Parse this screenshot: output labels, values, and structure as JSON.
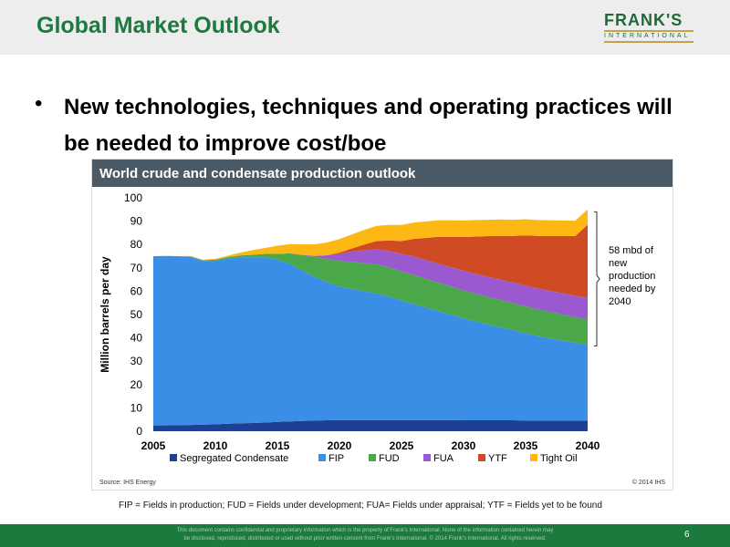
{
  "slide": {
    "title": "Global Market Outlook",
    "logo_word": "FRANK'S",
    "logo_sub": "INTERNATIONAL",
    "bullet": "New technologies, techniques and operating practices will be needed to improve cost/boe",
    "chart_header": "World crude and condensate production outlook",
    "footnote": "FIP = Fields in production; FUD = Fields under development; FUA= Fields under appraisal; YTF = Fields yet to be found",
    "footer_line1": "This document contains confidential and proprietary information which is the property of Frank's International. None of the information contained herein may",
    "footer_line2": "be disclosed, reproduced, distributed or used without prior written consent from Frank's International. © 2014 Frank's International. All rights reserved.",
    "page_number": "6"
  },
  "chart_data": {
    "type": "area",
    "stacked": true,
    "title": "World crude and condensate production outlook",
    "ylabel": "Million barrels per day",
    "xlabel": "",
    "ylim": [
      0,
      100
    ],
    "yticks": [
      0,
      10,
      20,
      30,
      40,
      50,
      60,
      70,
      80,
      90,
      100
    ],
    "xlim": [
      2005,
      2040
    ],
    "xticks": [
      2005,
      2010,
      2015,
      2020,
      2025,
      2030,
      2035,
      2040
    ],
    "x": [
      2005,
      2006,
      2007,
      2008,
      2009,
      2010,
      2011,
      2012,
      2013,
      2014,
      2015,
      2016,
      2017,
      2018,
      2019,
      2020,
      2021,
      2022,
      2023,
      2024,
      2025,
      2026,
      2027,
      2028,
      2029,
      2030,
      2031,
      2032,
      2033,
      2034,
      2035,
      2036,
      2037,
      2038,
      2039,
      2040
    ],
    "series": [
      {
        "name": "Segregated Condensate",
        "color": "#1f3f94",
        "values": [
          2.5,
          2.5,
          2.6,
          2.7,
          2.8,
          3.0,
          3.2,
          3.4,
          3.5,
          3.7,
          4.0,
          4.2,
          4.4,
          4.6,
          4.7,
          4.8,
          4.8,
          4.8,
          4.8,
          4.8,
          4.8,
          4.8,
          4.8,
          4.8,
          4.8,
          4.7,
          4.7,
          4.7,
          4.7,
          4.7,
          4.6,
          4.6,
          4.6,
          4.6,
          4.6,
          4.6
        ]
      },
      {
        "name": "FIP",
        "color": "#3a8ee6",
        "values": [
          72.5,
          72.6,
          72.4,
          72.0,
          70.2,
          70.0,
          70.8,
          71.1,
          71.0,
          70.8,
          69.5,
          67.5,
          64.5,
          61.5,
          59.2,
          57.2,
          56.2,
          55.2,
          54.2,
          52.9,
          51.2,
          49.7,
          48.2,
          46.6,
          45.1,
          43.6,
          42.3,
          41.0,
          39.8,
          38.6,
          37.4,
          36.2,
          35.2,
          34.2,
          33.2,
          32.4
        ]
      },
      {
        "name": "FUD",
        "color": "#4aa84a",
        "values": [
          0,
          0,
          0,
          0.2,
          0.3,
          0.5,
          0.6,
          0.8,
          1.1,
          1.5,
          2.5,
          4.5,
          6.5,
          8.5,
          10.0,
          11.0,
          11.5,
          12.0,
          12.5,
          12.5,
          12.5,
          12.4,
          12.3,
          12.2,
          12.1,
          12.0,
          11.9,
          11.8,
          11.7,
          11.6,
          11.5,
          11.4,
          11.3,
          11.2,
          11.1,
          11.0
        ]
      },
      {
        "name": "FUA",
        "color": "#9b59d0",
        "values": [
          0,
          0,
          0,
          0,
          0,
          0,
          0,
          0,
          0,
          0,
          0,
          0,
          0.2,
          0.5,
          1.5,
          3.0,
          4.5,
          5.5,
          6.5,
          7.0,
          7.5,
          8.0,
          8.0,
          8.2,
          8.3,
          8.4,
          8.5,
          8.6,
          8.7,
          8.8,
          8.9,
          9.0,
          9.0,
          9.1,
          9.2,
          9.2
        ]
      },
      {
        "name": "YTF",
        "color": "#d04a24",
        "values": [
          0,
          0,
          0,
          0,
          0,
          0,
          0,
          0,
          0,
          0,
          0,
          0,
          0,
          0,
          0,
          0.5,
          1.3,
          2.5,
          3.5,
          4.5,
          5.5,
          7.5,
          9.5,
          11.5,
          13.0,
          14.5,
          16.0,
          17.5,
          18.8,
          20.0,
          21.5,
          22.5,
          23.5,
          24.5,
          25.5,
          31.3
        ]
      },
      {
        "name": "Tight Oil",
        "color": "#fdb813",
        "values": [
          0,
          0,
          0,
          0.2,
          0.2,
          0.4,
          0.6,
          1.2,
          2.0,
          2.5,
          3.5,
          4.0,
          4.5,
          5.0,
          5.5,
          5.8,
          6.0,
          6.3,
          6.5,
          6.7,
          6.9,
          7.0,
          7.1,
          7.1,
          7.1,
          7.1,
          7.1,
          7.0,
          7.0,
          6.9,
          6.9,
          6.8,
          6.8,
          6.7,
          6.6,
          6.5
        ]
      }
    ],
    "legend": "bottom",
    "annotation": "58 mbd of new production needed by 2040",
    "source": "Source: IHS Energy",
    "copyright": "© 2014 IHS",
    "grid": false
  }
}
